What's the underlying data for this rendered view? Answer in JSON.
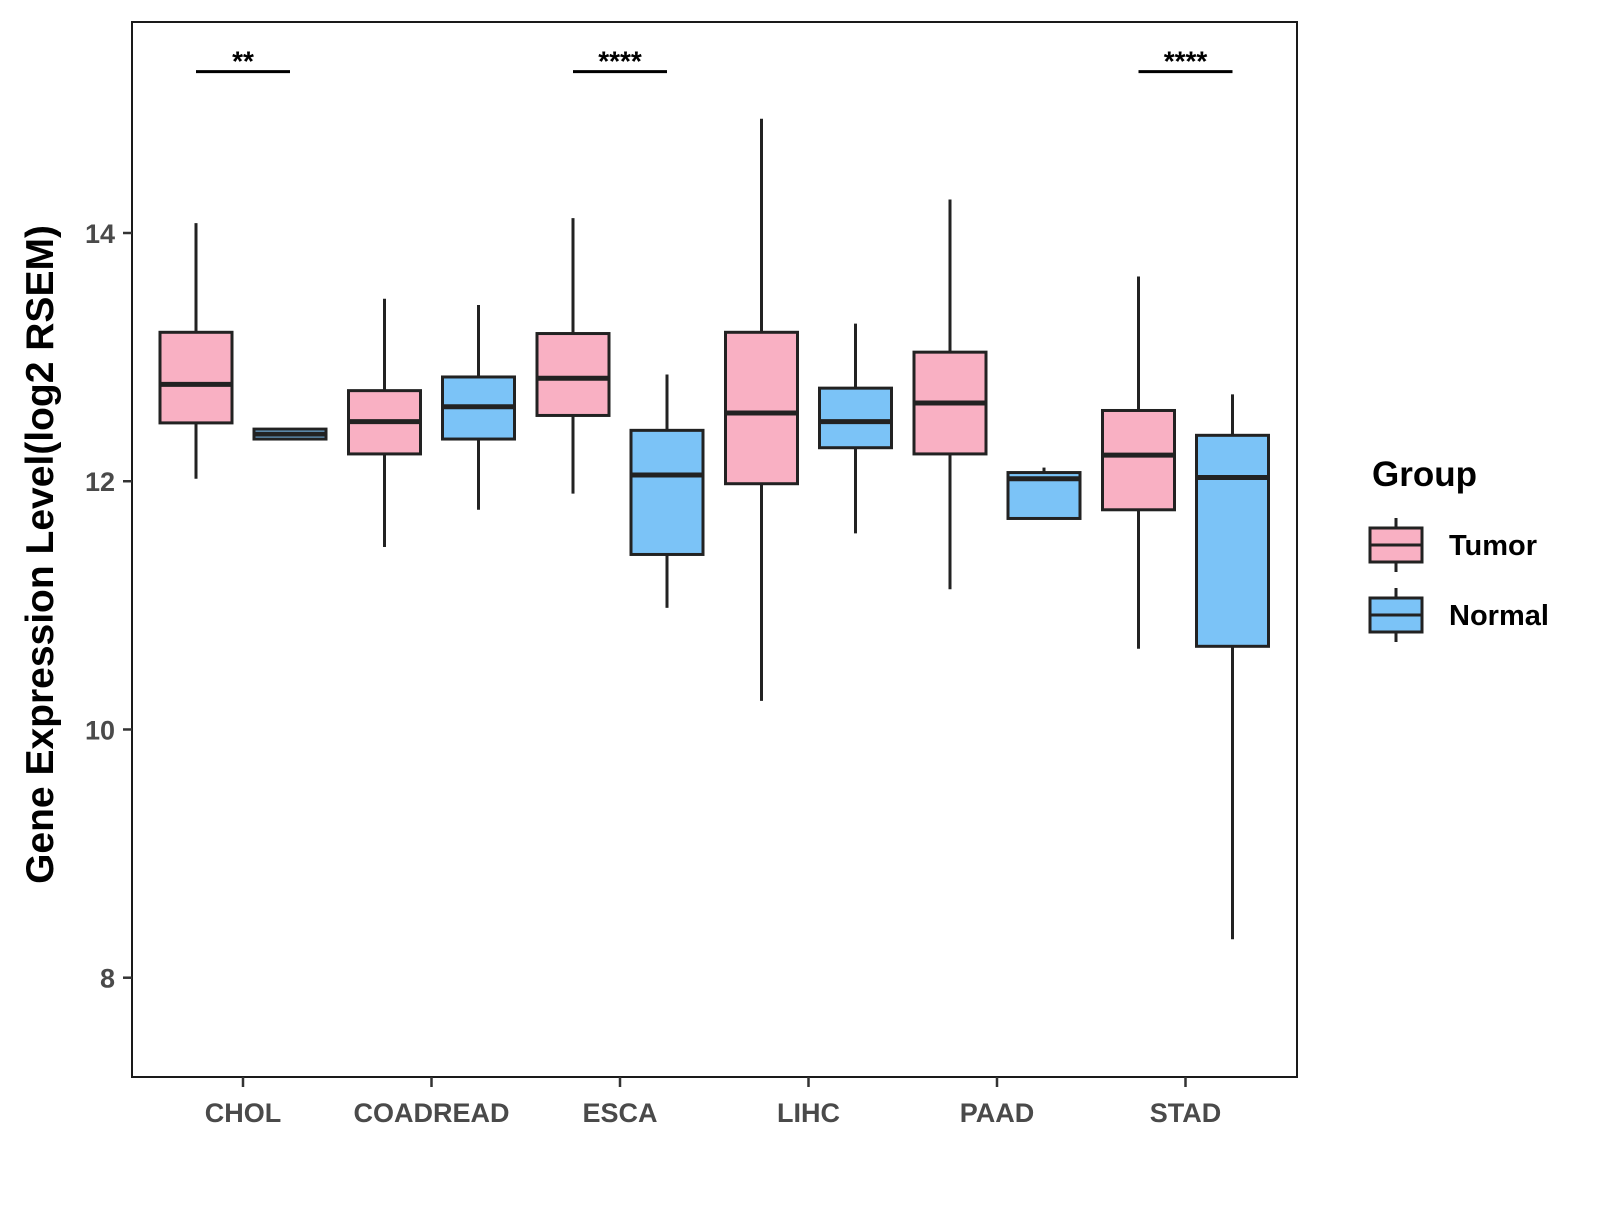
{
  "chart_data": {
    "type": "boxplot",
    "ylabel": "Gene Expression Level(log2 RSEM)",
    "xlabel": "",
    "ylim": [
      7.2,
      15.7
    ],
    "yticks": [
      8,
      10,
      12,
      14
    ],
    "grid": false,
    "categories": [
      "CHOL",
      "COADREAD",
      "ESCA",
      "LIHC",
      "PAAD",
      "STAD"
    ],
    "legend": {
      "title": "Group",
      "position": "right",
      "entries": [
        {
          "name": "Tumor",
          "color": "#f9b0c3"
        },
        {
          "name": "Normal",
          "color": "#7bc3f7"
        }
      ]
    },
    "series": [
      {
        "name": "Tumor",
        "color": "#f9b0c3",
        "boxes": [
          {
            "category": "CHOL",
            "min": 12.02,
            "q1": 12.47,
            "median": 12.78,
            "q3": 13.2,
            "max": 14.08
          },
          {
            "category": "COADREAD",
            "min": 11.47,
            "q1": 12.22,
            "median": 12.48,
            "q3": 12.73,
            "max": 13.47
          },
          {
            "category": "ESCA",
            "min": 11.9,
            "q1": 12.53,
            "median": 12.83,
            "q3": 13.19,
            "max": 14.12
          },
          {
            "category": "LIHC",
            "min": 10.23,
            "q1": 11.98,
            "median": 12.55,
            "q3": 13.2,
            "max": 14.92
          },
          {
            "category": "PAAD",
            "min": 11.13,
            "q1": 12.22,
            "median": 12.63,
            "q3": 13.04,
            "max": 14.27
          },
          {
            "category": "STAD",
            "min": 10.65,
            "q1": 11.77,
            "median": 12.21,
            "q3": 12.57,
            "max": 13.65
          }
        ]
      },
      {
        "name": "Normal",
        "color": "#7bc3f7",
        "boxes": [
          {
            "category": "CHOL",
            "min": 12.34,
            "q1": 12.34,
            "median": 12.38,
            "q3": 12.42,
            "max": 12.42
          },
          {
            "category": "COADREAD",
            "min": 11.77,
            "q1": 12.34,
            "median": 12.6,
            "q3": 12.84,
            "max": 13.42
          },
          {
            "category": "ESCA",
            "min": 10.98,
            "q1": 11.41,
            "median": 12.05,
            "q3": 12.41,
            "max": 12.86
          },
          {
            "category": "LIHC",
            "min": 11.58,
            "q1": 12.27,
            "median": 12.48,
            "q3": 12.75,
            "max": 13.27
          },
          {
            "category": "PAAD",
            "min": 11.7,
            "q1": 11.7,
            "median": 12.02,
            "q3": 12.07,
            "max": 12.11
          },
          {
            "category": "STAD",
            "min": 8.31,
            "q1": 10.67,
            "median": 12.03,
            "q3": 12.37,
            "max": 12.7
          }
        ]
      }
    ],
    "annotations": [
      {
        "category": "CHOL",
        "label": "**",
        "y": 15.3
      },
      {
        "category": "ESCA",
        "label": "****",
        "y": 15.3
      },
      {
        "category": "STAD",
        "label": "****",
        "y": 15.3
      }
    ]
  }
}
